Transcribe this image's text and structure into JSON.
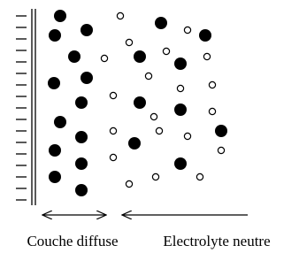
{
  "labels": {
    "diffuse_layer": "Couche diffuse",
    "neutral_electrolyte": "Electrolyte neutre"
  }
}
